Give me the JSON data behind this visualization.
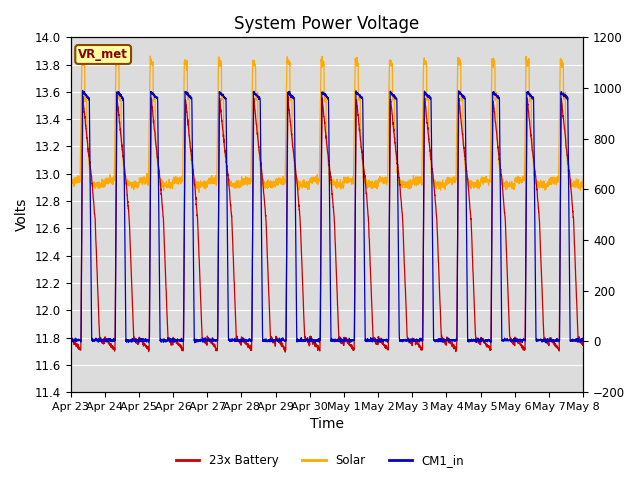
{
  "title": "System Power Voltage",
  "xlabel": "Time",
  "ylabel": "Volts",
  "ylim_left": [
    11.4,
    14.0
  ],
  "ylim_right": [
    -200,
    1200
  ],
  "yticks_left": [
    11.4,
    11.6,
    11.8,
    12.0,
    12.2,
    12.4,
    12.6,
    12.8,
    13.0,
    13.2,
    13.4,
    13.6,
    13.8,
    14.0
  ],
  "yticks_right": [
    -200,
    0,
    200,
    400,
    600,
    800,
    1000,
    1200
  ],
  "xtick_labels": [
    "Apr 23",
    "Apr 24",
    "Apr 25",
    "Apr 26",
    "Apr 27",
    "Apr 28",
    "Apr 29",
    "Apr 30",
    "May 1",
    "May 2",
    "May 3",
    "May 4",
    "May 5",
    "May 6",
    "May 7",
    "May 8"
  ],
  "num_days": 15,
  "legend_labels": [
    "23x Battery",
    "Solar",
    "CM1_in"
  ],
  "legend_colors": [
    "#cc0000",
    "#ffaa00",
    "#0000cc"
  ],
  "vr_met_label": "VR_met",
  "plot_bg_color": "#dcdcdc",
  "title_fontsize": 12,
  "axis_fontsize": 10,
  "tick_fontsize": 8.5
}
